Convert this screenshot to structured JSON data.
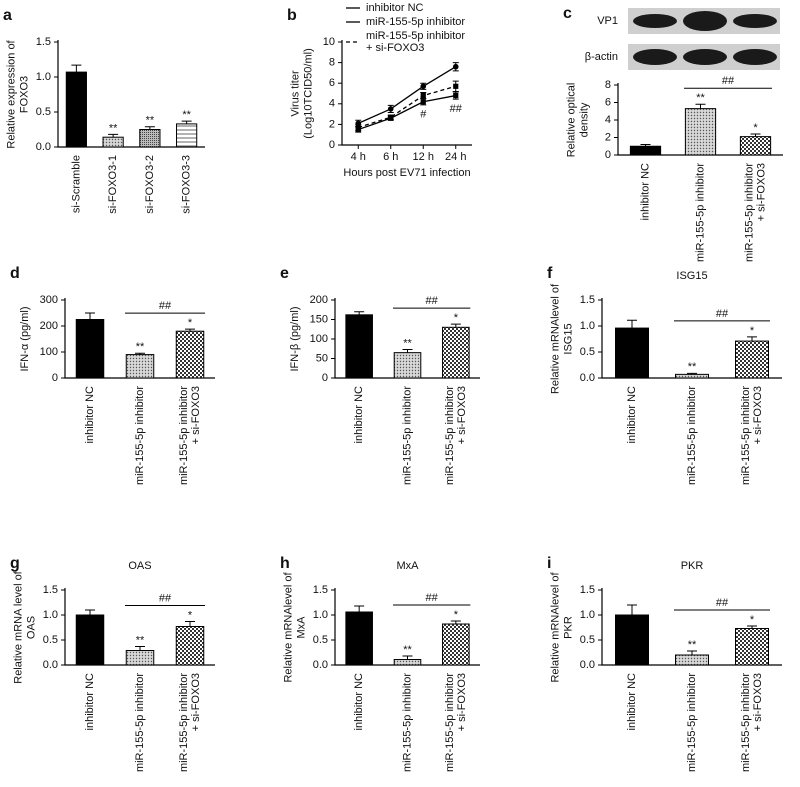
{
  "chart_data": [
    {
      "panel": "a",
      "type": "bar",
      "ylabel": [
        "Relative expression of",
        "FOXO3"
      ],
      "categories": [
        "si-Scramble",
        "si-FOXO3-1",
        "si-FOXO3-2",
        "si-FOXO3-3"
      ],
      "values": [
        1.07,
        0.14,
        0.25,
        0.33
      ],
      "errors": [
        0.1,
        0.04,
        0.04,
        0.04
      ],
      "significance": [
        null,
        "**",
        "**",
        "**"
      ],
      "bar_patterns": [
        "solid",
        "dots",
        "dense",
        "lines"
      ],
      "ylim": [
        0,
        1.5
      ],
      "yticks": [
        {
          "value": 0,
          "label": "0.0"
        },
        {
          "value": 0.5,
          "label": "0.5"
        },
        {
          "value": 1,
          "label": "1.0"
        },
        {
          "value": 1.5,
          "label": "1.5"
        }
      ]
    },
    {
      "panel": "b",
      "type": "line",
      "ylabel": [
        "Virus titer",
        "(Log10TCID50/ml)"
      ],
      "xlabel": "Hours post EV71 infection",
      "categories": [
        "4 h",
        "6 h",
        "12 h",
        "24 h"
      ],
      "series": [
        {
          "name": "inhibitor NC",
          "color": "#000000",
          "marker": "circle",
          "dash": false,
          "values": [
            2.1,
            3.5,
            5.7,
            7.6
          ],
          "errors": [
            0.3,
            0.35,
            0.3,
            0.4
          ]
        },
        {
          "name": "miR-155-5p inhibitor",
          "color": "#000000",
          "marker": "square",
          "dash": false,
          "values": [
            1.5,
            2.6,
            4.2,
            4.8
          ],
          "errors": [
            0.25,
            0.2,
            0.3,
            0.35
          ],
          "point_annotations": [
            null,
            null,
            "#",
            "##"
          ]
        },
        {
          "name": "miR-155-5p inhibitor\n+ si-FOXO3",
          "color": "#000000",
          "marker": "square",
          "dash": true,
          "values": [
            1.7,
            2.7,
            4.8,
            5.7
          ],
          "errors": [
            0.3,
            0.2,
            0.3,
            0.5
          ]
        }
      ],
      "ylim": [
        0,
        10
      ],
      "yticks": [
        0,
        2,
        4,
        6,
        8,
        10
      ]
    },
    {
      "panel": "c",
      "type": "bar",
      "blot_labels": [
        "VP1",
        "β-actin"
      ],
      "ylabel": [
        "Relative optical",
        "density"
      ],
      "categories": [
        "inhibitor NC",
        "miR-155-5p inhibitor",
        "miR-155-5p inhibitor\n+ si-FOXO3"
      ],
      "values": [
        1.0,
        5.3,
        2.1
      ],
      "errors": [
        0.2,
        0.5,
        0.3
      ],
      "significance": [
        null,
        "**",
        "*"
      ],
      "bracket": {
        "from": 1,
        "to": 2,
        "label": "##"
      },
      "bar_patterns": [
        "solid",
        "dots",
        "checker"
      ],
      "ylim": [
        0,
        8
      ],
      "yticks": [
        0,
        2,
        4,
        6,
        8
      ]
    },
    {
      "panel": "d",
      "type": "bar",
      "ylabel": [
        "IFN-α (pg/ml)"
      ],
      "categories": [
        "inhibitor NC",
        "miR-155-5p inhibitor",
        "miR-155-5p inhibitor\n+ si-FOXO3"
      ],
      "values": [
        225,
        90,
        180
      ],
      "errors": [
        25,
        5,
        8
      ],
      "significance": [
        null,
        "**",
        "*"
      ],
      "bracket": {
        "from": 1,
        "to": 2,
        "label": "##"
      },
      "bar_patterns": [
        "solid",
        "dots",
        "checker"
      ],
      "ylim": [
        0,
        300
      ],
      "yticks": [
        0,
        100,
        200,
        300
      ]
    },
    {
      "panel": "e",
      "type": "bar",
      "ylabel": [
        "IFN-β (pg/ml)"
      ],
      "categories": [
        "inhibitor NC",
        "miR-155-5p inhibitor",
        "miR-155-5p inhibitor\n+ si-FOXO3"
      ],
      "values": [
        162,
        65,
        130
      ],
      "errors": [
        8,
        8,
        8
      ],
      "significance": [
        null,
        "**",
        "*"
      ],
      "bracket": {
        "from": 1,
        "to": 2,
        "label": "##"
      },
      "bar_patterns": [
        "solid",
        "dots",
        "checker"
      ],
      "ylim": [
        0,
        200
      ],
      "yticks": [
        0,
        50,
        100,
        150,
        200
      ]
    },
    {
      "panel": "f",
      "type": "bar",
      "title": "ISG15",
      "ylabel": [
        "Relative mRNAlevel of",
        "ISG15"
      ],
      "categories": [
        "inhibitor NC",
        "miR-155-5p inhibitor",
        "miR-155-5p inhibitor\n+ si-FOXO3"
      ],
      "values": [
        0.96,
        0.07,
        0.71
      ],
      "errors": [
        0.15,
        0.02,
        0.08
      ],
      "significance": [
        null,
        "**",
        "*"
      ],
      "bracket": {
        "from": 1,
        "to": 2,
        "label": "##"
      },
      "bar_patterns": [
        "solid",
        "dots",
        "checker"
      ],
      "ylim": [
        0,
        1.5
      ],
      "yticks": [
        {
          "value": 0,
          "label": "0.0"
        },
        {
          "value": 0.5,
          "label": "0.5"
        },
        {
          "value": 1,
          "label": "1.0"
        },
        {
          "value": 1.5,
          "label": "1.5"
        }
      ]
    },
    {
      "panel": "g",
      "type": "bar",
      "title": "OAS",
      "ylabel": [
        "Relative mRNA level of",
        "OAS"
      ],
      "categories": [
        "inhibitor NC",
        "miR-155-5p inhibitor",
        "miR-155-5p inhibitor\n+ si-FOXO3"
      ],
      "values": [
        1.0,
        0.29,
        0.77
      ],
      "errors": [
        0.1,
        0.08,
        0.1
      ],
      "significance": [
        null,
        "**",
        "*"
      ],
      "bracket": {
        "from": 1,
        "to": 2,
        "label": "##"
      },
      "bar_patterns": [
        "solid",
        "dots",
        "checker"
      ],
      "ylim": [
        0,
        1.5
      ],
      "yticks": [
        {
          "value": 0,
          "label": "0.0"
        },
        {
          "value": 0.5,
          "label": "0.5"
        },
        {
          "value": 1,
          "label": "1.0"
        },
        {
          "value": 1.5,
          "label": "1.5"
        }
      ]
    },
    {
      "panel": "h",
      "type": "bar",
      "title": "MxA",
      "ylabel": [
        "Relative mRNAlevel of",
        "MxA"
      ],
      "categories": [
        "inhibitor NC",
        "miR-155-5p inhibitor",
        "miR-155-5p inhibitor\n+ si-FOXO3"
      ],
      "values": [
        1.06,
        0.11,
        0.82
      ],
      "errors": [
        0.12,
        0.07,
        0.06
      ],
      "significance": [
        null,
        "**",
        "*"
      ],
      "bracket": {
        "from": 1,
        "to": 2,
        "label": "##"
      },
      "bar_patterns": [
        "solid",
        "dots",
        "checker"
      ],
      "ylim": [
        0,
        1.5
      ],
      "yticks": [
        {
          "value": 0,
          "label": "0.0"
        },
        {
          "value": 0.5,
          "label": "0.5"
        },
        {
          "value": 1,
          "label": "1.0"
        },
        {
          "value": 1.5,
          "label": "1.5"
        }
      ]
    },
    {
      "panel": "i",
      "type": "bar",
      "title": "PKR",
      "ylabel": [
        "Relative mRNAlevel of",
        "PKR"
      ],
      "categories": [
        "inhibitor NC",
        "miR-155-5p inhibitor",
        "miR-155-5p inhibitor\n+ si-FOXO3"
      ],
      "values": [
        1.0,
        0.2,
        0.73
      ],
      "errors": [
        0.2,
        0.08,
        0.05
      ],
      "significance": [
        null,
        "**",
        "*"
      ],
      "bracket": {
        "from": 1,
        "to": 2,
        "label": "##"
      },
      "bar_patterns": [
        "solid",
        "dots",
        "checker"
      ],
      "ylim": [
        0,
        1.5
      ],
      "yticks": [
        {
          "value": 0,
          "label": "0.0"
        },
        {
          "value": 0.5,
          "label": "0.5"
        },
        {
          "value": 1,
          "label": "1.0"
        },
        {
          "value": 1.5,
          "label": "1.5"
        }
      ]
    }
  ]
}
